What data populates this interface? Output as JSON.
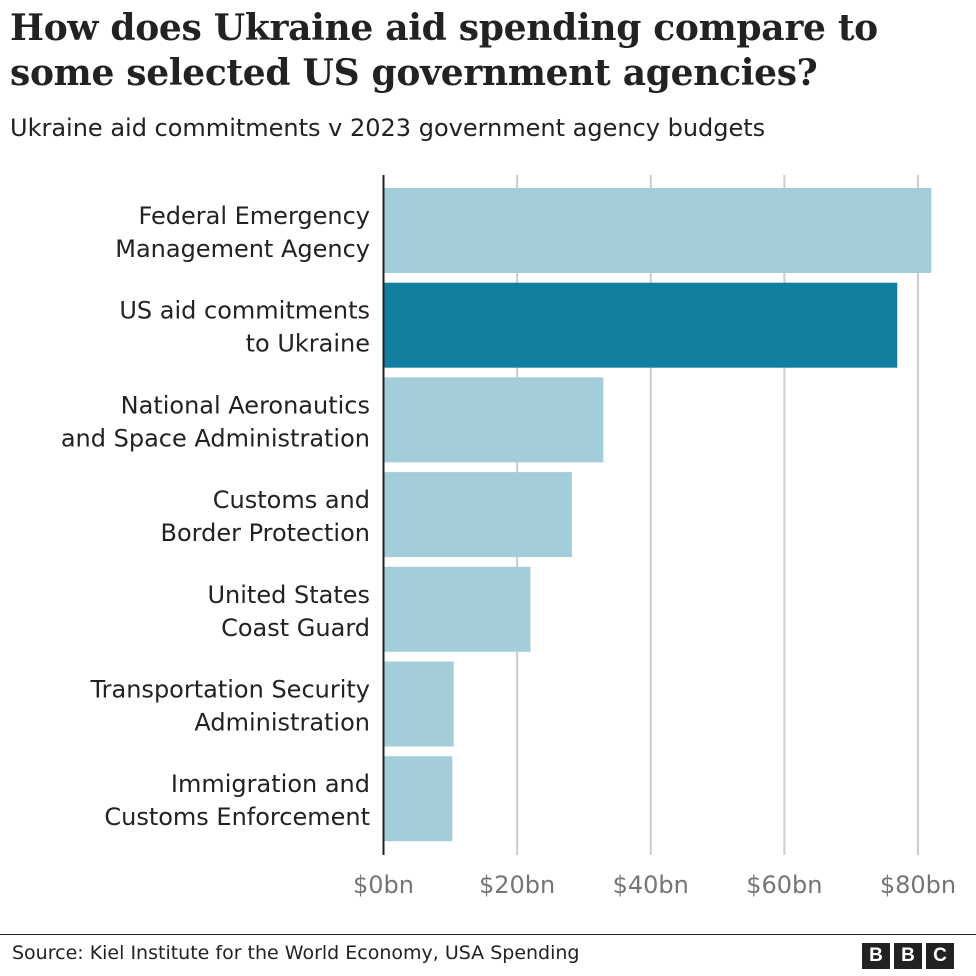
{
  "title": "How does Ukraine aid spending compare to some selected US government agencies?",
  "subtitle": "Ukraine aid commitments v 2023 government agency budgets",
  "source": "Source: Kiel Institute for the World Economy, USA Spending",
  "logo": "BBC",
  "chart_data": {
    "type": "bar",
    "orientation": "horizontal",
    "categories": [
      [
        "Federal Emergency",
        "Management Agency"
      ],
      [
        "US aid commitments",
        "to Ukraine"
      ],
      [
        "National Aeronautics",
        "and Space Administration"
      ],
      [
        "Customs and",
        "Border Protection"
      ],
      [
        "United States",
        "Coast Guard"
      ],
      [
        "Transportation Security",
        "Administration"
      ],
      [
        "Immigration and",
        "Customs Enforcement"
      ]
    ],
    "values": [
      82,
      76.9,
      32.9,
      28.2,
      22,
      10.5,
      10.3
    ],
    "highlight_index": 1,
    "colors": {
      "default": "#a3cdd8",
      "highlight": "#137fa0",
      "grid": "#cccccc",
      "axis": "#222222",
      "tick_label": "#757575"
    },
    "xlim": [
      0,
      80
    ],
    "xticks": [
      0,
      20,
      40,
      60,
      80
    ],
    "xtick_labels": [
      "$0bn",
      "$20bn",
      "$40bn",
      "$60bn",
      "$80bn"
    ],
    "grid": "vertical",
    "xlabel": "",
    "ylabel": ""
  }
}
